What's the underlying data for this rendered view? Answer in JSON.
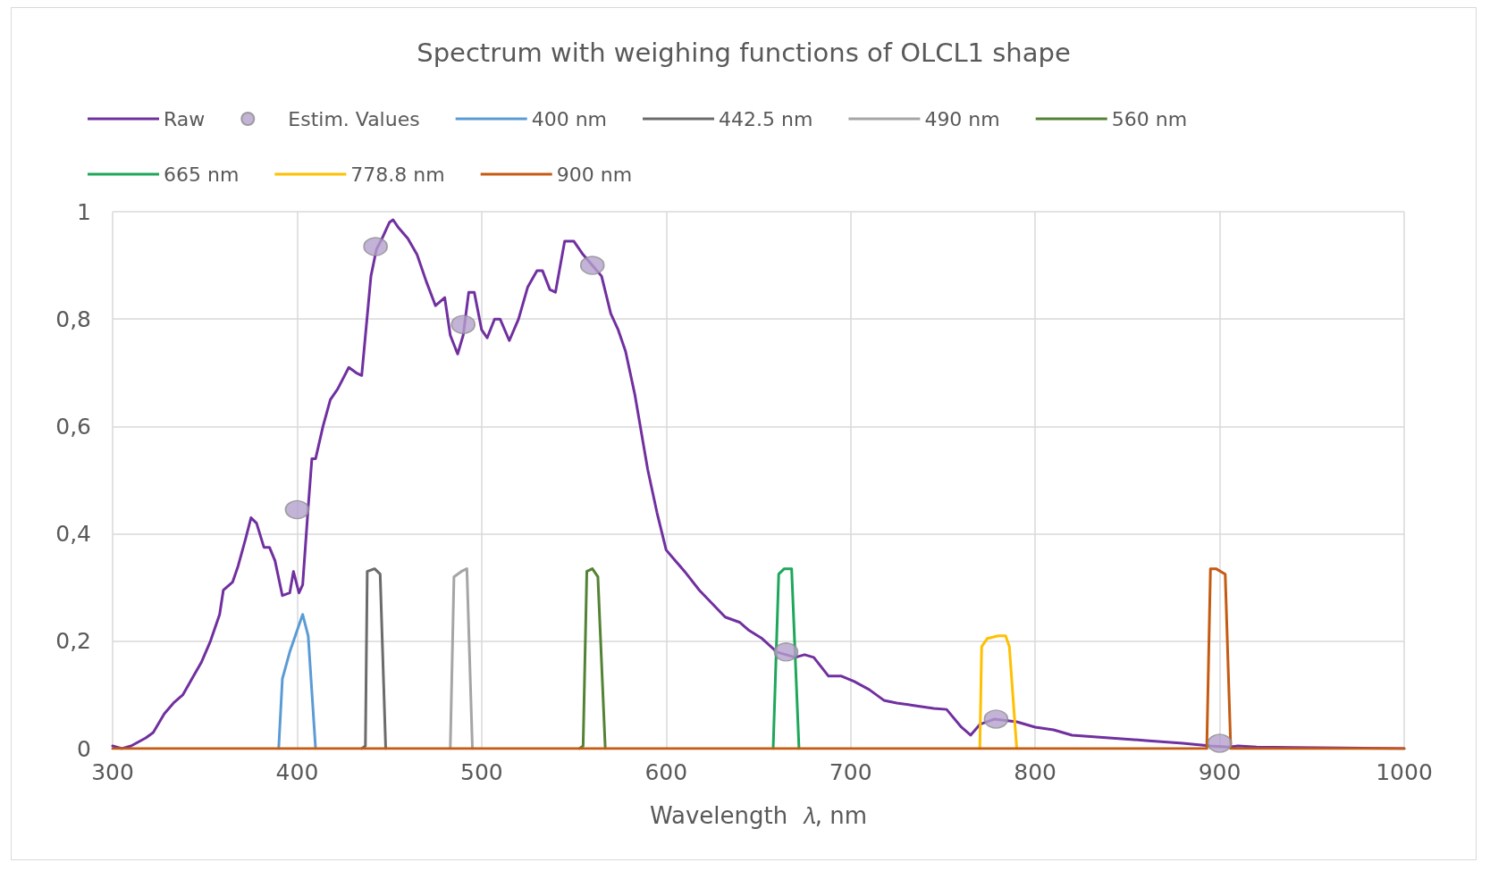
{
  "chart_data": {
    "type": "line",
    "title": "Spectrum with weighing functions of OLCL1 shape",
    "xlabel": "Wavelength  𝜆, nm",
    "xlim": [
      300,
      1000
    ],
    "xticks": [
      300,
      400,
      500,
      600,
      700,
      800,
      900,
      1000
    ],
    "ylim": [
      0,
      1
    ],
    "yticks": [
      {
        "value": 0,
        "label": "0"
      },
      {
        "value": 0.2,
        "label": "0,2"
      },
      {
        "value": 0.4,
        "label": "0,4"
      },
      {
        "value": 0.6,
        "label": "0,6"
      },
      {
        "value": 0.8,
        "label": "0,8"
      },
      {
        "value": 1,
        "label": "1"
      }
    ],
    "grid": true,
    "legend": "top",
    "line_style": "solid",
    "series": [
      {
        "name": "Raw",
        "color": "#7030a0",
        "x": [
          300,
          305,
          310,
          318,
          322,
          328,
          333,
          338,
          343,
          348,
          353,
          358,
          360,
          365,
          368,
          372,
          375,
          378,
          382,
          385,
          388,
          392,
          396,
          398,
          401,
          403,
          406,
          408,
          410,
          414,
          418,
          422,
          428,
          432,
          435,
          440,
          443,
          446,
          450,
          452,
          455,
          460,
          465,
          470,
          475,
          480,
          483,
          487,
          490,
          493,
          496,
          500,
          503,
          507,
          510,
          515,
          520,
          525,
          530,
          533,
          537,
          540,
          545,
          550,
          555,
          560,
          565,
          570,
          574,
          578,
          583,
          590,
          595,
          600,
          605,
          610,
          618,
          625,
          632,
          640,
          645,
          652,
          660,
          665,
          670,
          675,
          680,
          688,
          695,
          702,
          710,
          718,
          725,
          735,
          745,
          752,
          760,
          765,
          770,
          778,
          790,
          800,
          810,
          820,
          840,
          860,
          880,
          895,
          905,
          910,
          920,
          940,
          1000
        ],
        "values": [
          0.005,
          0,
          0.005,
          0.02,
          0.03,
          0.065,
          0.085,
          0.1,
          0.13,
          0.16,
          0.2,
          0.25,
          0.295,
          0.31,
          0.34,
          0.39,
          0.43,
          0.42,
          0.375,
          0.375,
          0.35,
          0.285,
          0.29,
          0.33,
          0.29,
          0.305,
          0.45,
          0.54,
          0.54,
          0.6,
          0.65,
          0.67,
          0.71,
          0.7,
          0.695,
          0.88,
          0.93,
          0.95,
          0.98,
          0.985,
          0.97,
          0.95,
          0.92,
          0.87,
          0.825,
          0.84,
          0.77,
          0.735,
          0.77,
          0.85,
          0.85,
          0.78,
          0.765,
          0.8,
          0.8,
          0.76,
          0.8,
          0.86,
          0.89,
          0.89,
          0.855,
          0.85,
          0.945,
          0.945,
          0.92,
          0.9,
          0.88,
          0.81,
          0.78,
          0.74,
          0.66,
          0.52,
          0.44,
          0.37,
          0.35,
          0.33,
          0.295,
          0.27,
          0.245,
          0.235,
          0.22,
          0.205,
          0.18,
          0.175,
          0.17,
          0.175,
          0.17,
          0.135,
          0.135,
          0.125,
          0.11,
          0.09,
          0.085,
          0.08,
          0.075,
          0.073,
          0.04,
          0.025,
          0.045,
          0.055,
          0.05,
          0.04,
          0.035,
          0.025,
          0.02,
          0.015,
          0.01,
          0.005,
          0.003,
          0.005,
          0.003,
          0.002,
          0
        ]
      },
      {
        "name": "Estim. Values",
        "type": "scatter",
        "color": "#b4a0cc",
        "x": [
          400,
          442.5,
          490,
          560,
          665,
          778.8,
          900
        ],
        "values": [
          0.445,
          0.935,
          0.79,
          0.9,
          0.18,
          0.055,
          0.01
        ]
      },
      {
        "name": "400 nm",
        "color": "#5b9bd5",
        "x": [
          390,
          392,
          396,
          400,
          403,
          406,
          410
        ],
        "values": [
          0,
          0.13,
          0.18,
          0.22,
          0.25,
          0.21,
          0
        ]
      },
      {
        "name": "442.5 nm",
        "color": "#6b6b6b",
        "x": [
          435,
          437,
          438,
          442,
          445,
          448
        ],
        "values": [
          0,
          0.005,
          0.33,
          0.335,
          0.325,
          0
        ]
      },
      {
        "name": "490 nm",
        "color": "#a5a5a5",
        "x": [
          483,
          485,
          489,
          492,
          495
        ],
        "values": [
          0,
          0.32,
          0.33,
          0.335,
          0
        ]
      },
      {
        "name": "560 nm",
        "color": "#548235",
        "x": [
          553,
          555,
          557,
          560,
          563,
          567
        ],
        "values": [
          0,
          0.005,
          0.33,
          0.335,
          0.32,
          0
        ]
      },
      {
        "name": "665 nm",
        "color": "#1ea75a",
        "x": [
          658,
          661,
          664,
          668,
          672
        ],
        "values": [
          0,
          0.325,
          0.335,
          0.335,
          0
        ]
      },
      {
        "name": "778.8 nm",
        "color": "#ffc000",
        "x": [
          770,
          771,
          774,
          780,
          784,
          786,
          790
        ],
        "values": [
          0,
          0.19,
          0.205,
          0.21,
          0.21,
          0.19,
          0
        ]
      },
      {
        "name": "900 nm",
        "color": "#c55a11",
        "x": [
          300,
          893,
          895,
          898,
          903,
          906,
          1000
        ],
        "values": [
          0,
          0,
          0.335,
          0.335,
          0.325,
          0,
          0
        ]
      }
    ]
  }
}
